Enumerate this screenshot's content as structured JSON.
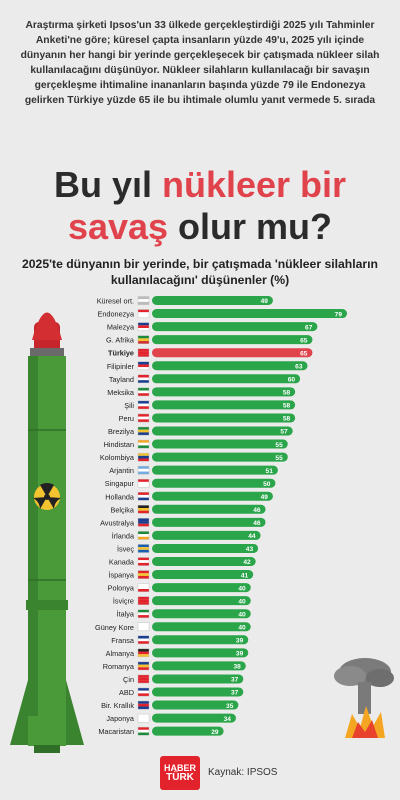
{
  "intro": "Araştırma şirketi Ipsos'un 33 ülkede gerçekleştirdiği 2025 yılı Tahminler Anketi'ne göre; küresel çapta insanların yüzde 49'u, 2025 yılı içinde dünyanın her hangi bir yerinde gerçekleşecek bir çatışmada nükleer silah kullanılacağını düşünüyor. Nükleer silahların kullanılacağı bir savaşın gerçekleşme ihtimaline inananların başında yüzde 79 ile Endonezya gelirken Türkiye yüzde 65 ile bu ihtimale olumlu yanıt vermede 5. sırada",
  "headline": {
    "part1": "Bu yıl ",
    "part2": "nükleer bir",
    "part3": "savaş",
    "part4": " olur mu?"
  },
  "footer": {
    "logo_top": "HABER",
    "logo_bottom": "TÜRK",
    "source": "Kaynak: IPSOS"
  },
  "colors": {
    "bar": "#2aa54a",
    "highlight": "#e0434b",
    "rocket": "#4a9a3a",
    "background": "#ebebeb"
  },
  "chart_data": {
    "type": "bar",
    "orientation": "horizontal",
    "title": "2025'te dünyanın bir yerinde, bir çatışmada 'nükleer silahların kullanılacağını' düşünenler (%)",
    "xlim": [
      0,
      79
    ],
    "highlight": "Türkiye",
    "categories": [
      "Küresel ort.",
      "Endonezya",
      "Malezya",
      "G. Afrika",
      "Türkiye",
      "Filipinler",
      "Tayland",
      "Meksika",
      "Şili",
      "Peru",
      "Brezilya",
      "Hindistan",
      "Kolombiya",
      "Arjantin",
      "Singapur",
      "Hollanda",
      "Belçika",
      "Avustralya",
      "İrlanda",
      "İsveç",
      "Kanada",
      "İspanya",
      "Polonya",
      "İsviçre",
      "İtalya",
      "Güney Kore",
      "Fransa",
      "Almanya",
      "Romanya",
      "Çin",
      "ABD",
      "Bir. Krallık",
      "Japonya",
      "Macaristan"
    ],
    "values": [
      49,
      79,
      67,
      65,
      65,
      63,
      60,
      58,
      58,
      58,
      57,
      55,
      55,
      51,
      50,
      49,
      46,
      46,
      44,
      43,
      42,
      41,
      40,
      40,
      40,
      40,
      39,
      39,
      38,
      37,
      37,
      35,
      34,
      29
    ]
  }
}
